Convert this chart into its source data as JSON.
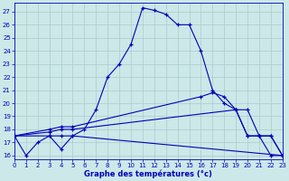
{
  "title": "Graphe des températures (°c)",
  "bg_color": "#cce8e8",
  "grid_color": "#aacccc",
  "line_color": "#0000bb",
  "marker": "+",
  "xlim": [
    0,
    23
  ],
  "ylim": [
    15.7,
    27.7
  ],
  "xticks": [
    0,
    1,
    2,
    3,
    4,
    5,
    6,
    7,
    8,
    9,
    10,
    11,
    12,
    13,
    14,
    15,
    16,
    17,
    18,
    19,
    20,
    21,
    22,
    23
  ],
  "yticks": [
    16,
    17,
    18,
    19,
    20,
    21,
    22,
    23,
    24,
    25,
    26,
    27
  ],
  "curve1_x": [
    0,
    1,
    2,
    3,
    4,
    5,
    6,
    7,
    8,
    9,
    10,
    11,
    12,
    13,
    14,
    15,
    16,
    17,
    18,
    19,
    20,
    21,
    22,
    23
  ],
  "curve1_y": [
    17.5,
    16.0,
    17.0,
    17.5,
    16.5,
    17.5,
    18.0,
    19.5,
    22.0,
    23.0,
    24.5,
    27.3,
    27.1,
    26.8,
    26.0,
    26.0,
    24.0,
    21.0,
    20.0,
    19.5,
    17.5,
    17.5,
    16.0,
    16.0
  ],
  "curve2_x": [
    0,
    3,
    4,
    5,
    23
  ],
  "curve2_y": [
    17.5,
    17.5,
    17.5,
    17.5,
    16.0
  ],
  "curve3_x": [
    0,
    3,
    4,
    5,
    19,
    20,
    21,
    22,
    23
  ],
  "curve3_y": [
    17.5,
    17.8,
    18.0,
    18.0,
    19.5,
    17.5,
    17.5,
    17.5,
    16.0
  ],
  "curve4_x": [
    0,
    3,
    4,
    5,
    16,
    17,
    18,
    19,
    20,
    21,
    22,
    23
  ],
  "curve4_y": [
    17.5,
    18.0,
    18.2,
    18.2,
    20.5,
    20.8,
    20.5,
    19.5,
    19.5,
    17.5,
    17.5,
    16.0
  ]
}
